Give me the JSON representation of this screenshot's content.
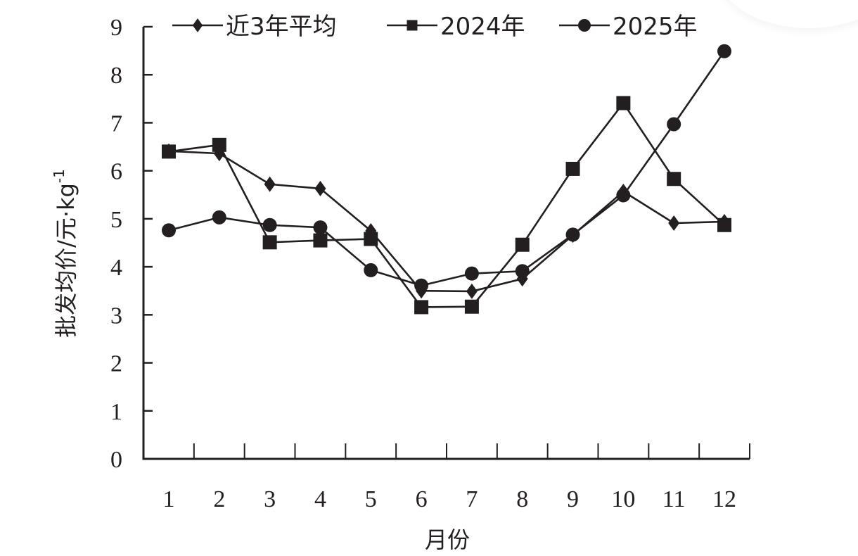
{
  "chart_data": {
    "type": "line",
    "title": "",
    "xlabel": "月份",
    "ylabel": "批发均价/元·kg⁻¹",
    "ylabel_parts": {
      "main": "批发均价/元·kg",
      "sup": "-1"
    },
    "x": [
      1,
      2,
      3,
      4,
      5,
      6,
      7,
      8,
      9,
      10,
      11,
      12
    ],
    "categories": [
      "1",
      "2",
      "3",
      "4",
      "5",
      "6",
      "7",
      "8",
      "9",
      "10",
      "11",
      "12"
    ],
    "ylim": [
      0,
      9
    ],
    "yticks": [
      0,
      1,
      2,
      3,
      4,
      5,
      6,
      7,
      8,
      9
    ],
    "grid": false,
    "legend_position": "top",
    "series": [
      {
        "name": "近3年平均",
        "marker": "diamond",
        "values": [
          6.41,
          6.36,
          5.72,
          5.63,
          4.75,
          3.5,
          3.49,
          3.75,
          4.66,
          5.57,
          4.91,
          4.94
        ]
      },
      {
        "name": "2024年",
        "marker": "square",
        "values": [
          6.4,
          6.54,
          4.51,
          4.55,
          4.58,
          3.16,
          3.17,
          4.46,
          6.04,
          7.41,
          5.83,
          4.87
        ]
      },
      {
        "name": "2025年",
        "marker": "circle",
        "values": [
          4.76,
          5.03,
          4.87,
          4.82,
          3.93,
          3.61,
          3.86,
          3.91,
          4.67,
          5.49,
          6.97,
          8.49
        ]
      }
    ]
  },
  "style": {
    "line_color": "#231f20",
    "background": "#ffffff"
  }
}
